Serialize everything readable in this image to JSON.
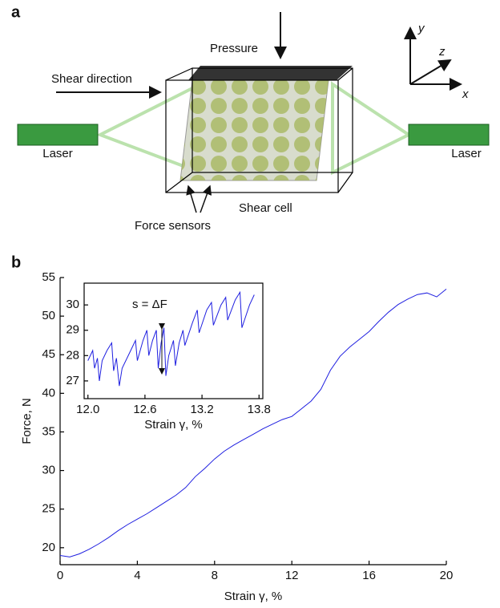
{
  "panel_a": {
    "label": "a",
    "pressure": "Pressure",
    "shear_direction": "Shear direction",
    "laser_left": "Laser",
    "laser_right": "Laser",
    "shear_cell": "Shear cell",
    "force_sensors": "Force sensors",
    "axis_y": "y",
    "axis_z": "z",
    "axis_x": "x"
  },
  "panel_b": {
    "label": "b"
  },
  "chart_data": [
    {
      "type": "line",
      "xlabel": "Strain γ, %",
      "ylabel": "Force, N",
      "color": "#1f1fe0",
      "x": [
        0,
        0.5,
        1,
        1.5,
        2,
        2.5,
        3,
        3.5,
        4,
        4.5,
        5,
        5.5,
        6,
        6.5,
        7,
        7.5,
        8,
        8.5,
        9,
        9.5,
        10,
        10.5,
        11,
        11.5,
        12,
        12.5,
        13,
        13.5,
        14,
        14.5,
        15,
        15.5,
        16,
        16.5,
        17,
        17.5,
        18,
        18.5,
        19,
        19.5,
        20
      ],
      "values": [
        19,
        18.8,
        19.2,
        19.8,
        20.5,
        21.3,
        22.2,
        23,
        23.7,
        24.4,
        25.2,
        26,
        26.8,
        27.8,
        29.2,
        30.3,
        31.5,
        32.5,
        33.3,
        34,
        34.7,
        35.4,
        36,
        36.6,
        37,
        38,
        39,
        40.5,
        43,
        44.8,
        46,
        47,
        48,
        49.3,
        50.5,
        51.5,
        52.2,
        52.8,
        53,
        52.5,
        53.5
      ],
      "xlim": [
        0,
        20
      ],
      "ylim": [
        17.8,
        55
      ],
      "xticks": [
        0,
        4,
        8,
        12,
        16,
        20
      ],
      "yticks": [
        20,
        25,
        30,
        35,
        40,
        45,
        50,
        55
      ]
    },
    {
      "type": "line",
      "xlabel": "Strain γ, %",
      "annotation": "s = ΔF",
      "color": "#1f1fe0",
      "x": [
        12.0,
        12.05,
        12.07,
        12.1,
        12.12,
        12.15,
        12.2,
        12.25,
        12.27,
        12.3,
        12.33,
        12.36,
        12.45,
        12.5,
        12.52,
        12.58,
        12.62,
        12.64,
        12.68,
        12.72,
        12.74,
        12.77,
        12.8,
        12.82,
        12.85,
        12.9,
        12.92,
        12.96,
        13.0,
        13.02,
        13.1,
        13.15,
        13.17,
        13.25,
        13.3,
        13.32,
        13.4,
        13.45,
        13.47,
        13.55,
        13.6,
        13.62,
        13.7,
        13.75
      ],
      "values": [
        27.8,
        28.2,
        27.5,
        27.9,
        27.0,
        27.8,
        28.2,
        28.5,
        27.4,
        27.9,
        26.8,
        27.5,
        28.2,
        28.6,
        27.8,
        28.6,
        29.0,
        28.0,
        28.6,
        29.0,
        27.5,
        28.5,
        29.1,
        27.2,
        28.0,
        28.6,
        27.6,
        28.5,
        29.0,
        28.4,
        29.3,
        29.8,
        28.9,
        29.8,
        30.1,
        29.2,
        30.0,
        30.3,
        29.4,
        30.2,
        30.5,
        29.1,
        30.0,
        30.4
      ],
      "xlim": [
        11.96,
        13.84
      ],
      "ylim": [
        26.3,
        30.86
      ],
      "xticks": [
        {
          "value": 12,
          "label": "12.0"
        },
        {
          "value": 12.6,
          "label": "12.6"
        },
        {
          "value": 13.2,
          "label": "13.2"
        },
        {
          "value": 13.8,
          "label": "13.8"
        }
      ],
      "yticks": [
        27,
        28,
        29,
        30
      ]
    }
  ]
}
